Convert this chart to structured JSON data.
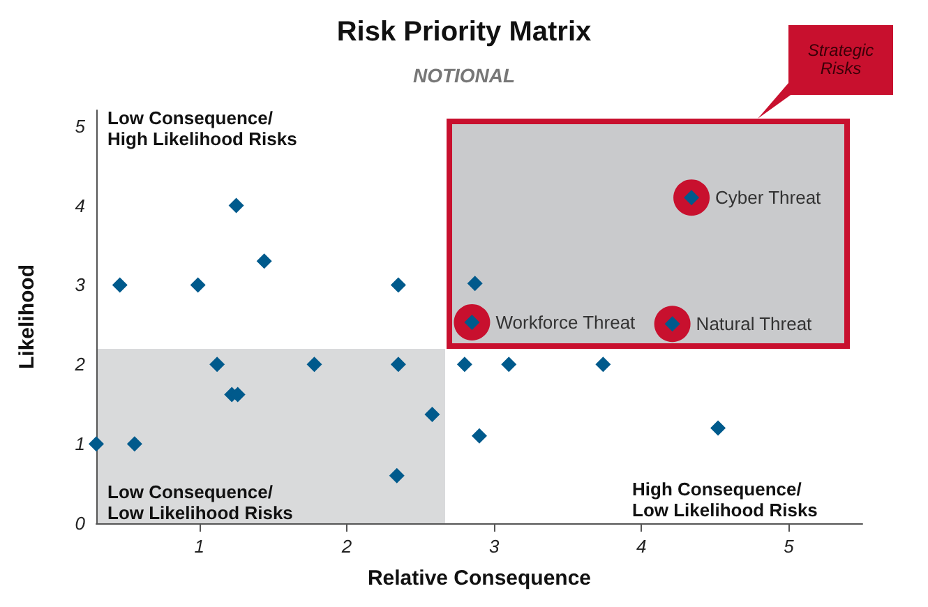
{
  "chart_data": {
    "type": "scatter",
    "title": "Risk Priority Matrix",
    "subtitle": "NOTIONAL",
    "xlabel": "Relative Consequence",
    "ylabel": "Likelihood",
    "xlim": [
      0.3,
      5.5
    ],
    "xticks": [
      1,
      2,
      3,
      4,
      5
    ],
    "ylim": [
      0,
      5.2
    ],
    "yticks": [
      0,
      1,
      2,
      3,
      4,
      5
    ],
    "grid": false,
    "series": [
      {
        "color": "#c8102e",
        "marker": "circle",
        "x": [
          2.85,
          4.21,
          4.34
        ],
        "values": [
          2.53,
          2.51,
          4.1
        ],
        "value_labels": [
          "Workforce Threat",
          "Natural Threat",
          "Cyber Threat"
        ]
      },
      {
        "color": "#005a8c",
        "marker": "diamond",
        "x": [
          0.3,
          0.46,
          0.56,
          0.99,
          1.12,
          1.25,
          1.22,
          1.26,
          1.44,
          1.78,
          2.35,
          2.35,
          2.34,
          2.58,
          2.8,
          2.87,
          2.9,
          3.1,
          3.74,
          4.52,
          2.85,
          4.21,
          4.34
        ],
        "values": [
          1,
          3,
          1,
          3,
          2,
          4,
          1.62,
          1.62,
          3.3,
          2,
          3,
          2,
          0.6,
          1.37,
          2,
          3.02,
          1.1,
          2,
          2,
          1.2,
          2.53,
          2.51,
          4.1
        ]
      }
    ],
    "annotations": [
      "Low Consequence/\nHigh Likelihood Risks",
      "Low Consequence/\nLow Likelihood Risks",
      "High Consequence/\nLow Likelihood Risks",
      "Strategic\nRisks"
    ]
  }
}
